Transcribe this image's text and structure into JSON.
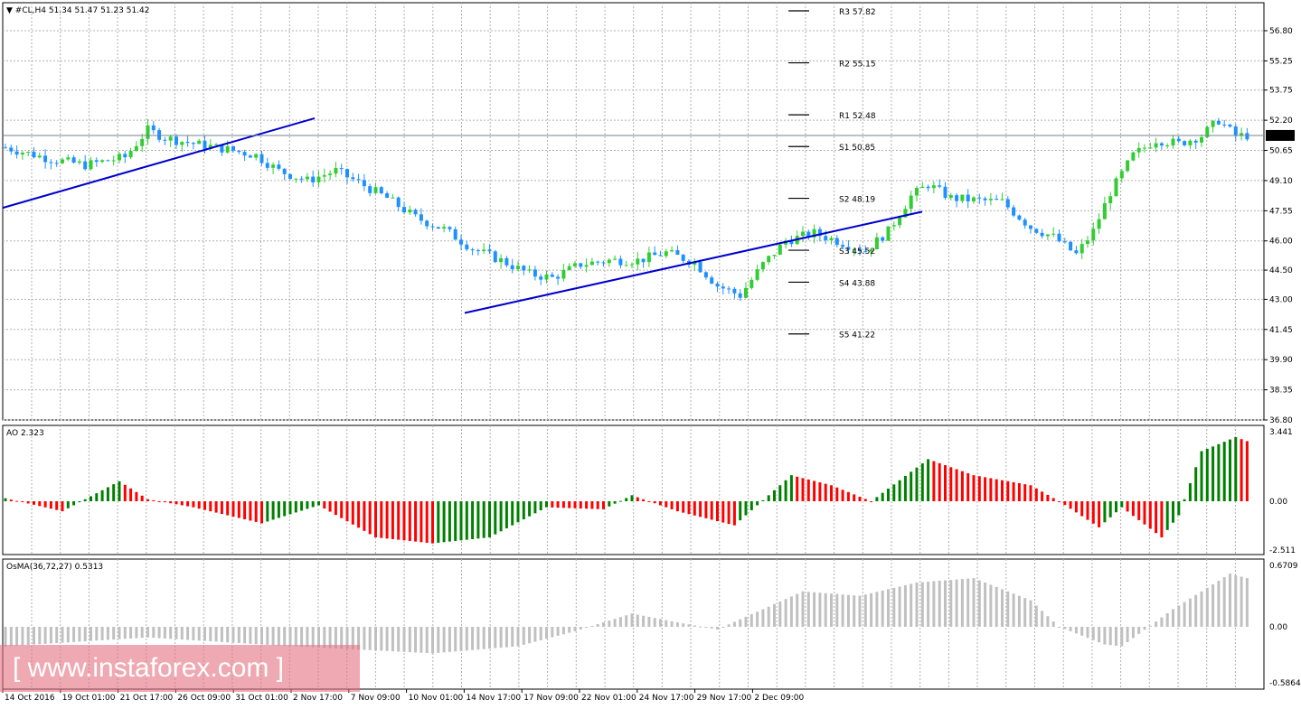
{
  "header": {
    "arrow": "▼",
    "symbol": "#CL,H4",
    "ohlc": "51.34 51.47 51.23 51.42"
  },
  "current_price": "51.42",
  "pivots": [
    {
      "label": "R3 57.82",
      "value": 57.82
    },
    {
      "label": "R2 55.15",
      "value": 55.15
    },
    {
      "label": "R1 52.48",
      "value": 52.48
    },
    {
      "label": "S1 50.85",
      "value": 50.85
    },
    {
      "label": "S2 48.19",
      "value": 48.19
    },
    {
      "label": "S3 45.52",
      "value": 45.52
    },
    {
      "label": "S4 43.88",
      "value": 43.88
    },
    {
      "label": "S5 41.22",
      "value": 41.22
    }
  ],
  "price_axis": [
    "56.80",
    "55.25",
    "53.75",
    "52.20",
    "50.65",
    "49.10",
    "47.55",
    "46.00",
    "44.50",
    "43.00",
    "41.45",
    "39.90",
    "38.35",
    "36.80"
  ],
  "time_axis": [
    "14 Oct 2016",
    "19 Oct 01:00",
    "21 Oct 17:00",
    "26 Oct 09:00",
    "31 Oct 01:00",
    "2 Nov 17:00",
    "7 Nov 09:00",
    "10 Nov 01:00",
    "14 Nov 17:00",
    "17 Nov 09:00",
    "22 Nov 01:00",
    "24 Nov 17:00",
    "29 Nov 17:00",
    "2 Dec 09:00"
  ],
  "ao": {
    "label": "AO 2.323",
    "axis": [
      "3.441",
      "0.00",
      "-2.511"
    ],
    "up_color": "#008000",
    "down_color": "#ff0000"
  },
  "osma": {
    "label": "OsMA(36,72,27) 0.5313",
    "axis": [
      "0.6709",
      "0.00",
      "-0.5864"
    ],
    "color": "#c0c0c0"
  },
  "watermark": "[ www.instaforex.com ]",
  "colors": {
    "bull": "#32cd32",
    "bear": "#1e90ff",
    "trendline": "#0000cd"
  },
  "chart_data": {
    "type": "candlestick",
    "timeframe": "H4",
    "symbol": "#CL",
    "ylim": [
      36.8,
      56.8
    ],
    "close_path": [
      [
        0,
        50.8
      ],
      [
        8,
        50.2
      ],
      [
        14,
        49.9
      ],
      [
        21,
        50.3
      ],
      [
        25,
        51.7
      ],
      [
        28,
        51.3
      ],
      [
        33,
        51.0
      ],
      [
        39,
        50.7
      ],
      [
        44,
        50.4
      ],
      [
        48,
        49.6
      ],
      [
        53,
        49.1
      ],
      [
        58,
        49.6
      ],
      [
        62,
        49.0
      ],
      [
        67,
        48.2
      ],
      [
        72,
        47.2
      ],
      [
        77,
        46.6
      ],
      [
        82,
        45.6
      ],
      [
        87,
        45.0
      ],
      [
        92,
        44.3
      ],
      [
        96,
        44.1
      ],
      [
        101,
        44.8
      ],
      [
        106,
        45.0
      ],
      [
        111,
        45.0
      ],
      [
        116,
        45.4
      ],
      [
        121,
        44.9
      ],
      [
        125,
        43.7
      ],
      [
        129,
        43.2
      ],
      [
        133,
        44.8
      ],
      [
        137,
        46.0
      ],
      [
        142,
        46.4
      ],
      [
        146,
        46.0
      ],
      [
        151,
        45.5
      ],
      [
        155,
        46.5
      ],
      [
        159,
        48.3
      ],
      [
        162,
        48.9
      ],
      [
        166,
        48.2
      ],
      [
        170,
        48.1
      ],
      [
        175,
        48.0
      ],
      [
        180,
        46.7
      ],
      [
        184,
        46.2
      ],
      [
        188,
        45.3
      ],
      [
        191,
        46.5
      ],
      [
        194,
        48.5
      ],
      [
        198,
        50.4
      ],
      [
        202,
        51.2
      ],
      [
        206,
        51.0
      ],
      [
        210,
        51.4
      ],
      [
        213,
        52.2
      ],
      [
        216,
        51.4
      ],
      [
        218,
        51.42
      ]
    ]
  }
}
